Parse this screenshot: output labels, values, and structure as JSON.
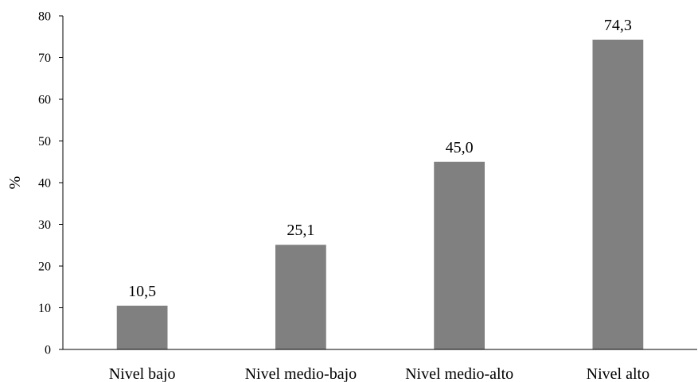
{
  "chart_data": {
    "type": "bar",
    "title": "",
    "xlabel": "",
    "ylabel": "%",
    "categories": [
      "Nivel bajo",
      "Nivel medio-bajo",
      "Nivel medio-alto",
      "Nivel alto"
    ],
    "values": [
      10.5,
      25.1,
      45.0,
      74.3
    ],
    "data_labels": [
      "10,5",
      "25,1",
      "45,0",
      "74,3"
    ],
    "ylim": [
      0,
      80
    ],
    "yticks": [
      0,
      10,
      20,
      30,
      40,
      50,
      60,
      70,
      80
    ],
    "grid": false,
    "legend": "none",
    "bar_color": "#808080"
  }
}
